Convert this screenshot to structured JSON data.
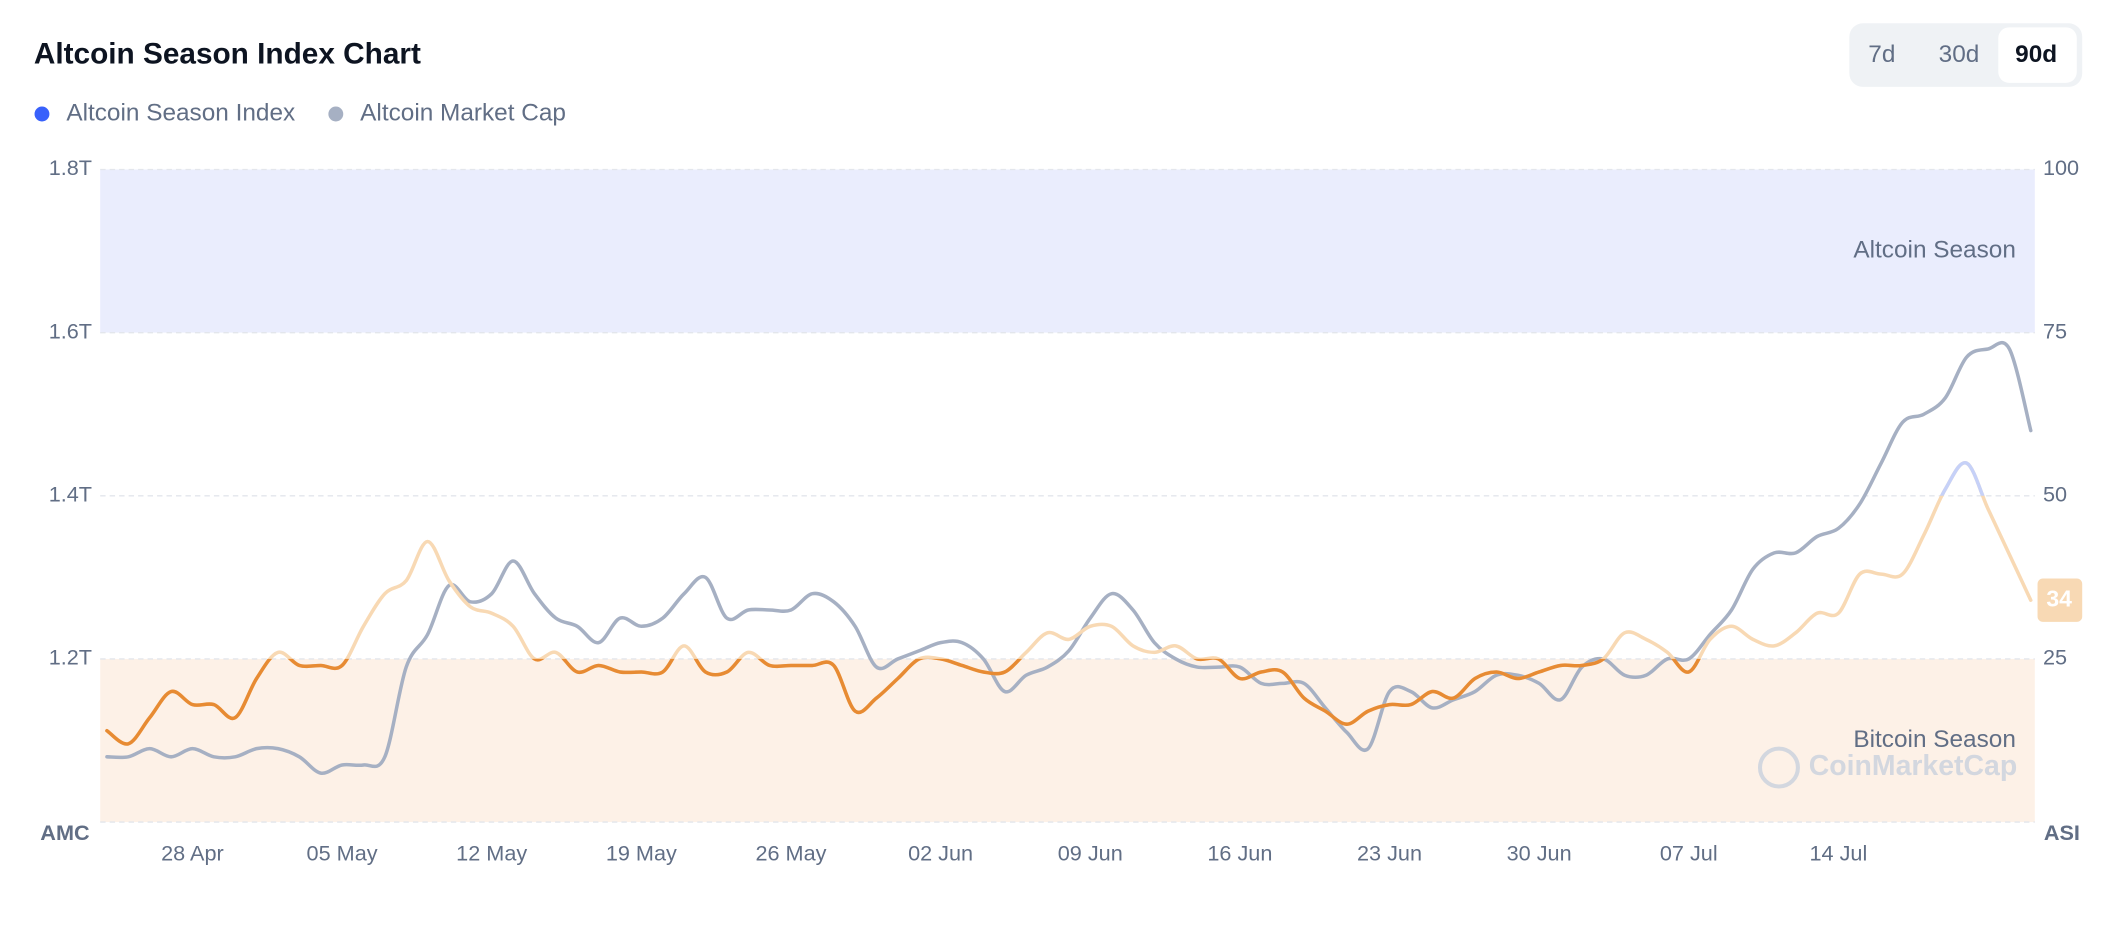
{
  "chart_data": {
    "type": "line",
    "title": "Altcoin Season Index Chart",
    "range_options": [
      "7d",
      "30d",
      "90d"
    ],
    "selected_range": "90d",
    "ylabel": "AMC",
    "y2label": "ASI",
    "watermark": "CoinMarketCap",
    "grid": true,
    "ylim": [
      1.0,
      1.8
    ],
    "yticks": [
      {
        "value": 1.2,
        "label": "1.2T"
      },
      {
        "value": 1.4,
        "label": "1.4T"
      },
      {
        "value": 1.6,
        "label": "1.6T"
      },
      {
        "value": 1.8,
        "label": "1.8T"
      }
    ],
    "y2lim": [
      0,
      100
    ],
    "y2ticks": [
      25,
      50,
      75,
      100
    ],
    "zones": [
      {
        "label": "Altcoin Season",
        "range": [
          75,
          100
        ],
        "color": "#eaedfd"
      },
      {
        "label": "Bitcoin Season",
        "range": [
          0,
          25
        ],
        "color": "#fdf1e7"
      }
    ],
    "x": [
      "24 Apr",
      "25 Apr",
      "26 Apr",
      "27 Apr",
      "28 Apr",
      "29 Apr",
      "30 Apr",
      "01 May",
      "02 May",
      "03 May",
      "04 May",
      "05 May",
      "06 May",
      "07 May",
      "08 May",
      "09 May",
      "10 May",
      "11 May",
      "12 May",
      "13 May",
      "14 May",
      "15 May",
      "16 May",
      "17 May",
      "18 May",
      "19 May",
      "20 May",
      "21 May",
      "22 May",
      "23 May",
      "24 May",
      "25 May",
      "26 May",
      "27 May",
      "28 May",
      "29 May",
      "30 May",
      "31 May",
      "01 Jun",
      "02 Jun",
      "03 Jun",
      "04 Jun",
      "05 Jun",
      "06 Jun",
      "07 Jun",
      "08 Jun",
      "09 Jun",
      "10 Jun",
      "11 Jun",
      "12 Jun",
      "13 Jun",
      "14 Jun",
      "15 Jun",
      "16 Jun",
      "17 Jun",
      "18 Jun",
      "19 Jun",
      "20 Jun",
      "21 Jun",
      "22 Jun",
      "23 Jun",
      "24 Jun",
      "25 Jun",
      "26 Jun",
      "27 Jun",
      "28 Jun",
      "29 Jun",
      "30 Jun",
      "01 Jul",
      "02 Jul",
      "03 Jul",
      "04 Jul",
      "05 Jul",
      "06 Jul",
      "07 Jul",
      "08 Jul",
      "09 Jul",
      "10 Jul",
      "11 Jul",
      "12 Jul",
      "13 Jul",
      "14 Jul",
      "15 Jul",
      "16 Jul",
      "17 Jul",
      "18 Jul",
      "19 Jul",
      "20 Jul",
      "21 Jul",
      "22 Jul",
      "23 Jul"
    ],
    "xticks": [
      "28 Apr",
      "05 May",
      "12 May",
      "19 May",
      "26 May",
      "02 Jun",
      "09 Jun",
      "16 Jun",
      "23 Jun",
      "30 Jun",
      "07 Jul",
      "14 Jul"
    ],
    "series": [
      {
        "name": "Altcoin Season Index",
        "color": "#3861fb",
        "axis": "y2",
        "values": [
          14,
          12,
          16,
          20,
          18,
          18,
          16,
          22,
          26,
          24,
          24,
          24,
          30,
          35,
          37,
          43,
          37,
          33,
          32,
          30,
          25,
          26,
          23,
          24,
          23,
          23,
          23,
          27,
          23,
          23,
          26,
          24,
          24,
          24,
          24,
          17,
          19,
          22,
          25,
          25,
          24,
          23,
          23,
          26,
          29,
          28,
          30,
          30,
          27,
          26,
          27,
          25,
          25,
          22,
          23,
          23,
          19,
          17,
          15,
          17,
          18,
          18,
          20,
          19,
          22,
          23,
          22,
          23,
          24,
          24,
          25,
          29,
          28,
          26,
          23,
          28,
          30,
          28,
          27,
          29,
          32,
          32,
          38,
          38,
          38,
          44,
          51,
          55,
          48,
          41,
          34
        ]
      },
      {
        "name": "Altcoin Market Cap",
        "color": "#a6b0c3",
        "values": [
          1.08,
          1.08,
          1.09,
          1.08,
          1.09,
          1.08,
          1.08,
          1.09,
          1.09,
          1.08,
          1.06,
          1.07,
          1.07,
          1.08,
          1.19,
          1.23,
          1.29,
          1.27,
          1.28,
          1.32,
          1.28,
          1.25,
          1.24,
          1.22,
          1.25,
          1.24,
          1.25,
          1.28,
          1.3,
          1.25,
          1.26,
          1.26,
          1.26,
          1.28,
          1.27,
          1.24,
          1.19,
          1.2,
          1.21,
          1.22,
          1.22,
          1.2,
          1.16,
          1.18,
          1.19,
          1.21,
          1.25,
          1.28,
          1.26,
          1.22,
          1.2,
          1.19,
          1.19,
          1.19,
          1.17,
          1.17,
          1.17,
          1.14,
          1.11,
          1.09,
          1.16,
          1.16,
          1.14,
          1.15,
          1.16,
          1.18,
          1.18,
          1.17,
          1.15,
          1.19,
          1.2,
          1.18,
          1.18,
          1.2,
          1.2,
          1.23,
          1.26,
          1.31,
          1.33,
          1.33,
          1.35,
          1.36,
          1.39,
          1.44,
          1.49,
          1.5,
          1.52,
          1.57,
          1.58,
          1.58,
          1.48
        ]
      }
    ]
  }
}
